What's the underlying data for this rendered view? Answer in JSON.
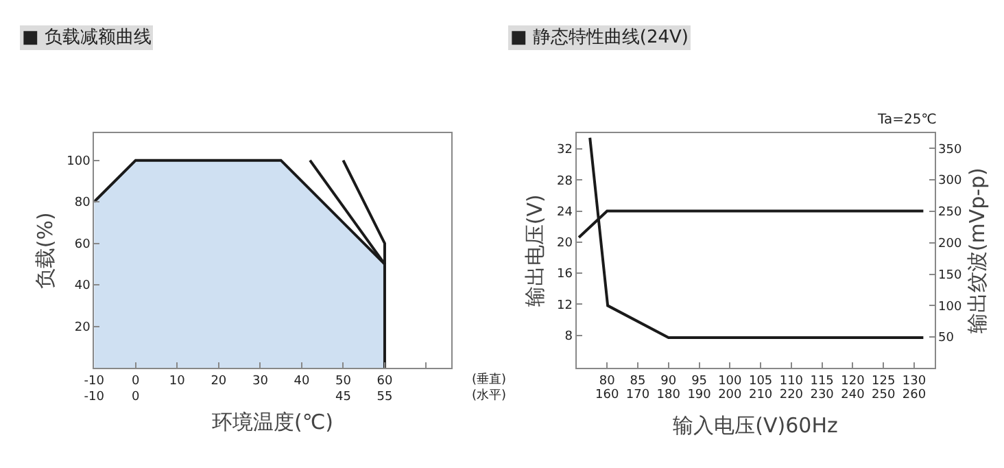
{
  "chart_data": [
    {
      "type": "area",
      "title": "■ 负载减额曲线",
      "xlabel": "环境温度(℃)",
      "ylabel": "负载(%)",
      "xlim": [
        -10,
        76
      ],
      "xticks": [
        {
          "value": -10,
          "label": "-10\n-10"
        },
        {
          "value": 0,
          "label": "0\n0"
        },
        10,
        20,
        30,
        40,
        {
          "value": 50,
          "label": "50\n45"
        },
        {
          "value": 60,
          "label": "60\n55"
        },
        {
          "value": 70,
          "label": null
        }
      ],
      "ylim": [
        0,
        113
      ],
      "yticks": [
        20,
        40,
        60,
        80,
        100
      ],
      "annotations": [
        "(垂直)\n(水平)"
      ],
      "series": [
        {
          "type": "area",
          "color": "#cfe0f2",
          "x": [
            -10,
            0,
            35,
            60,
            60
          ],
          "values": [
            80,
            100,
            100,
            50,
            0
          ]
        },
        {
          "type": "line",
          "color": "#1a1a1a",
          "x": [
            42,
            60
          ],
          "values": [
            100,
            50
          ]
        },
        {
          "type": "line",
          "color": "#1a1a1a",
          "x": [
            50,
            60,
            60
          ],
          "values": [
            100,
            60,
            50
          ]
        }
      ]
    },
    {
      "type": "line",
      "title": "■ 静态特性曲线(24V)",
      "xlabel": "输入电压(V)60Hz",
      "ylabel": "输出电压(V)",
      "y2label": "输出纹波(mVp-p)",
      "xlim": [
        75,
        133.3
      ],
      "xticks": [
        80,
        85,
        90,
        95,
        100,
        105,
        110,
        115,
        120,
        125,
        130
      ],
      "x2lim": [
        150,
        266.6
      ],
      "x2ticks": [
        160,
        170,
        180,
        190,
        200,
        210,
        220,
        230,
        240,
        250,
        260
      ],
      "ylim": [
        3.8,
        34
      ],
      "yticks": [
        8,
        12,
        16,
        20,
        24,
        28,
        32
      ],
      "y2lim": [
        1,
        374
      ],
      "y2ticks": [
        50,
        100,
        150,
        200,
        250,
        300,
        350
      ],
      "annotations": [
        "Ta=25℃"
      ],
      "series": [
        {
          "color": "#1a1a1a",
          "x": [
            75.4,
            80,
            131.5
          ],
          "values": [
            20.6,
            24,
            24
          ]
        },
        {
          "color": "#1a1a1a",
          "axis": "y2",
          "x": [
            77.2,
            80.1,
            90,
            131.5
          ],
          "values": [
            367,
            100,
            49,
            49
          ]
        }
      ]
    }
  ]
}
